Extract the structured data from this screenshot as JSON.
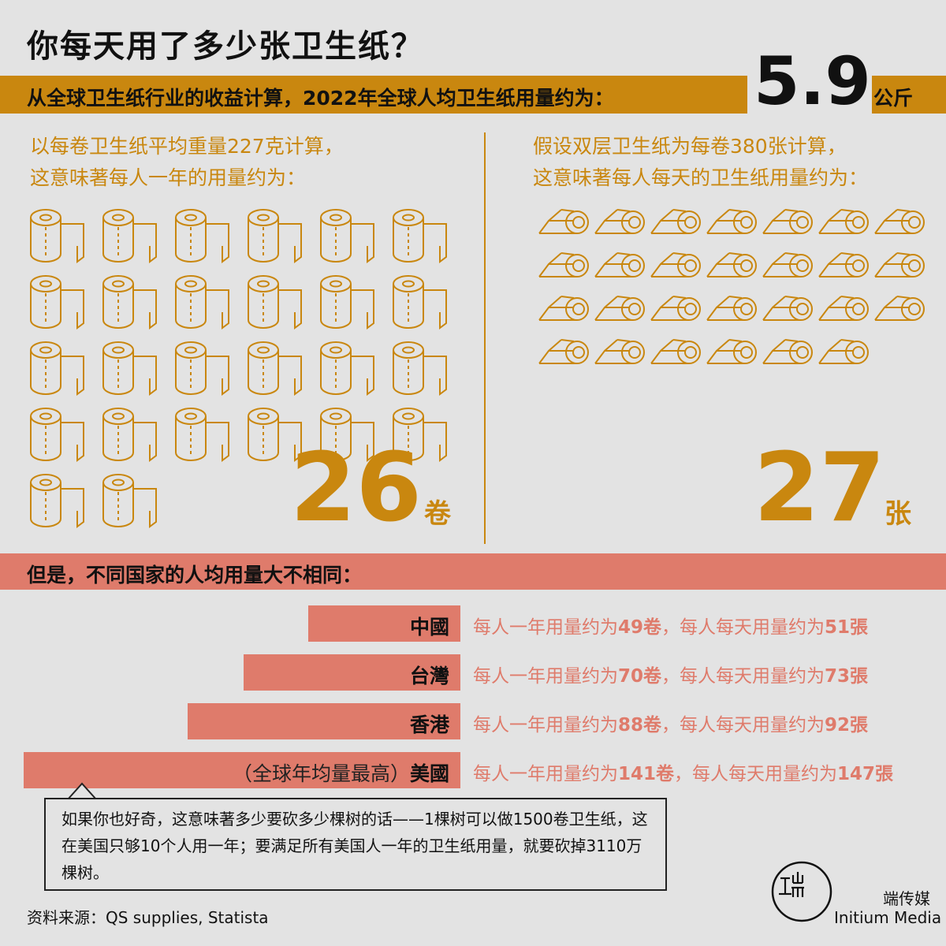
{
  "title": "你每天用了多少张卫生纸？",
  "band1": {
    "text": "从全球卫生纸行业的收益计算，2022年全球人均卫生纸用量约为：",
    "value": "5.9",
    "unit": "公斤"
  },
  "left": {
    "line1": "以每卷卫生纸平均重量227克计算，",
    "line2": "这意味著每人一年的用量约为：",
    "value": "26",
    "unit": "卷"
  },
  "right": {
    "line1": "假设双层卫生纸为每卷380张计算，",
    "line2": "这意味著每人每天的卫生纸用量约为：",
    "value": "27",
    "unit": "张"
  },
  "band2": {
    "text": "但是，不同国家的人均用量大不相同："
  },
  "colors": {
    "gold": "#c9870f",
    "salmon": "#df7b6b",
    "background": "#e3e3e3"
  },
  "icons": {
    "roll": "toilet-roll-icon",
    "sheet": "toilet-sheet-icon"
  },
  "chart_data": {
    "type": "bar",
    "orientation": "horizontal",
    "categories": [
      "中國",
      "台灣",
      "香港",
      "美國"
    ],
    "series": [
      {
        "values": [
          49,
          70,
          88,
          141
        ]
      }
    ],
    "rows": [
      {
        "prefix": "",
        "label": "中國",
        "t1": "每人一年用量约为",
        "rolls": "49卷",
        "t2": "，每人每天用量约为",
        "sheets": "51張"
      },
      {
        "prefix": "",
        "label": "台灣",
        "t1": "每人一年用量约为",
        "rolls": "70卷",
        "t2": "，每人每天用量约为",
        "sheets": "73張"
      },
      {
        "prefix": "",
        "label": "香港",
        "t1": "每人一年用量约为",
        "rolls": "88卷",
        "t2": "，每人每天用量约为",
        "sheets": "92張"
      },
      {
        "prefix": "（全球年均量最高）",
        "label": "美國",
        "t1": "每人一年用量约为",
        "rolls": "141卷",
        "t2": "，每人每天用量约为",
        "sheets": "147張"
      }
    ],
    "icon_counts": {
      "rolls": 26,
      "sheets": 27
    }
  },
  "callout": {
    "text": "如果你也好奇，这意味著多少要砍多少棵树的话——1棵树可以做1500卷卫生纸，这在美国只够10个人用一年；要满足所有美国人一年的卫生纸用量，就要砍掉3110万棵树。"
  },
  "source": "资料来源：QS supplies, Statista",
  "brand": {
    "name_zh": "端传媒",
    "name_en": "Initium Media"
  }
}
